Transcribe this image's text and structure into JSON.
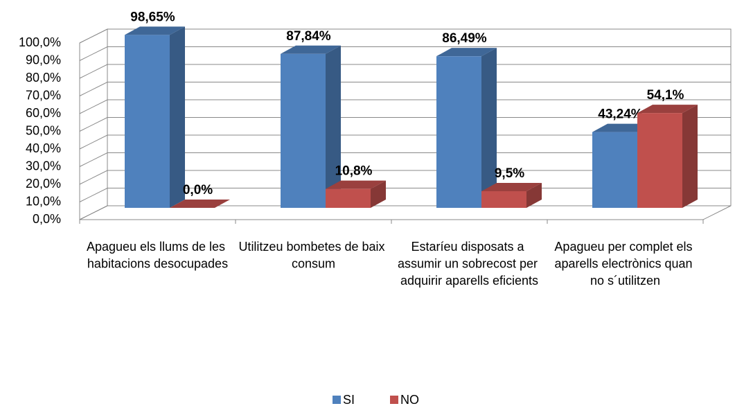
{
  "chart_data": {
    "type": "bar3d",
    "categories": [
      "Apagueu els llums de les habitacions desocupades",
      "Utilitzeu bombetes de baix consum",
      "Estaríeu disposats a assumir un sobrecost per adquirir aparells eficients",
      "Apagueu per complet els aparells electrònics quan no s´utilitzen"
    ],
    "series": [
      {
        "name": "SI",
        "color": "#4f81bd",
        "values": [
          98.65,
          87.84,
          86.49,
          43.24
        ],
        "value_labels": [
          "98,65%",
          "87,84%",
          "86,49%",
          "43,24%"
        ]
      },
      {
        "name": "NO",
        "color": "#c0504d",
        "values": [
          0.0,
          10.8,
          9.5,
          54.1
        ],
        "value_labels": [
          "0,0%",
          "10,8%",
          "9,5%",
          "54,1%"
        ]
      }
    ],
    "ylim": [
      0,
      100
    ],
    "yticks": [
      {
        "value": 0,
        "label": "0,0%"
      },
      {
        "value": 10,
        "label": "10,0%"
      },
      {
        "value": 20,
        "label": "20,0%"
      },
      {
        "value": 30,
        "label": "30,0%"
      },
      {
        "value": 40,
        "label": "40,0%"
      },
      {
        "value": 50,
        "label": "50,0%"
      },
      {
        "value": 60,
        "label": "60,0%"
      },
      {
        "value": 70,
        "label": "70,0%"
      },
      {
        "value": 80,
        "label": "80,0%"
      },
      {
        "value": 90,
        "label": "90,0%"
      },
      {
        "value": 100,
        "label": "100,0%"
      }
    ],
    "grid": true,
    "legend": "bottom"
  }
}
